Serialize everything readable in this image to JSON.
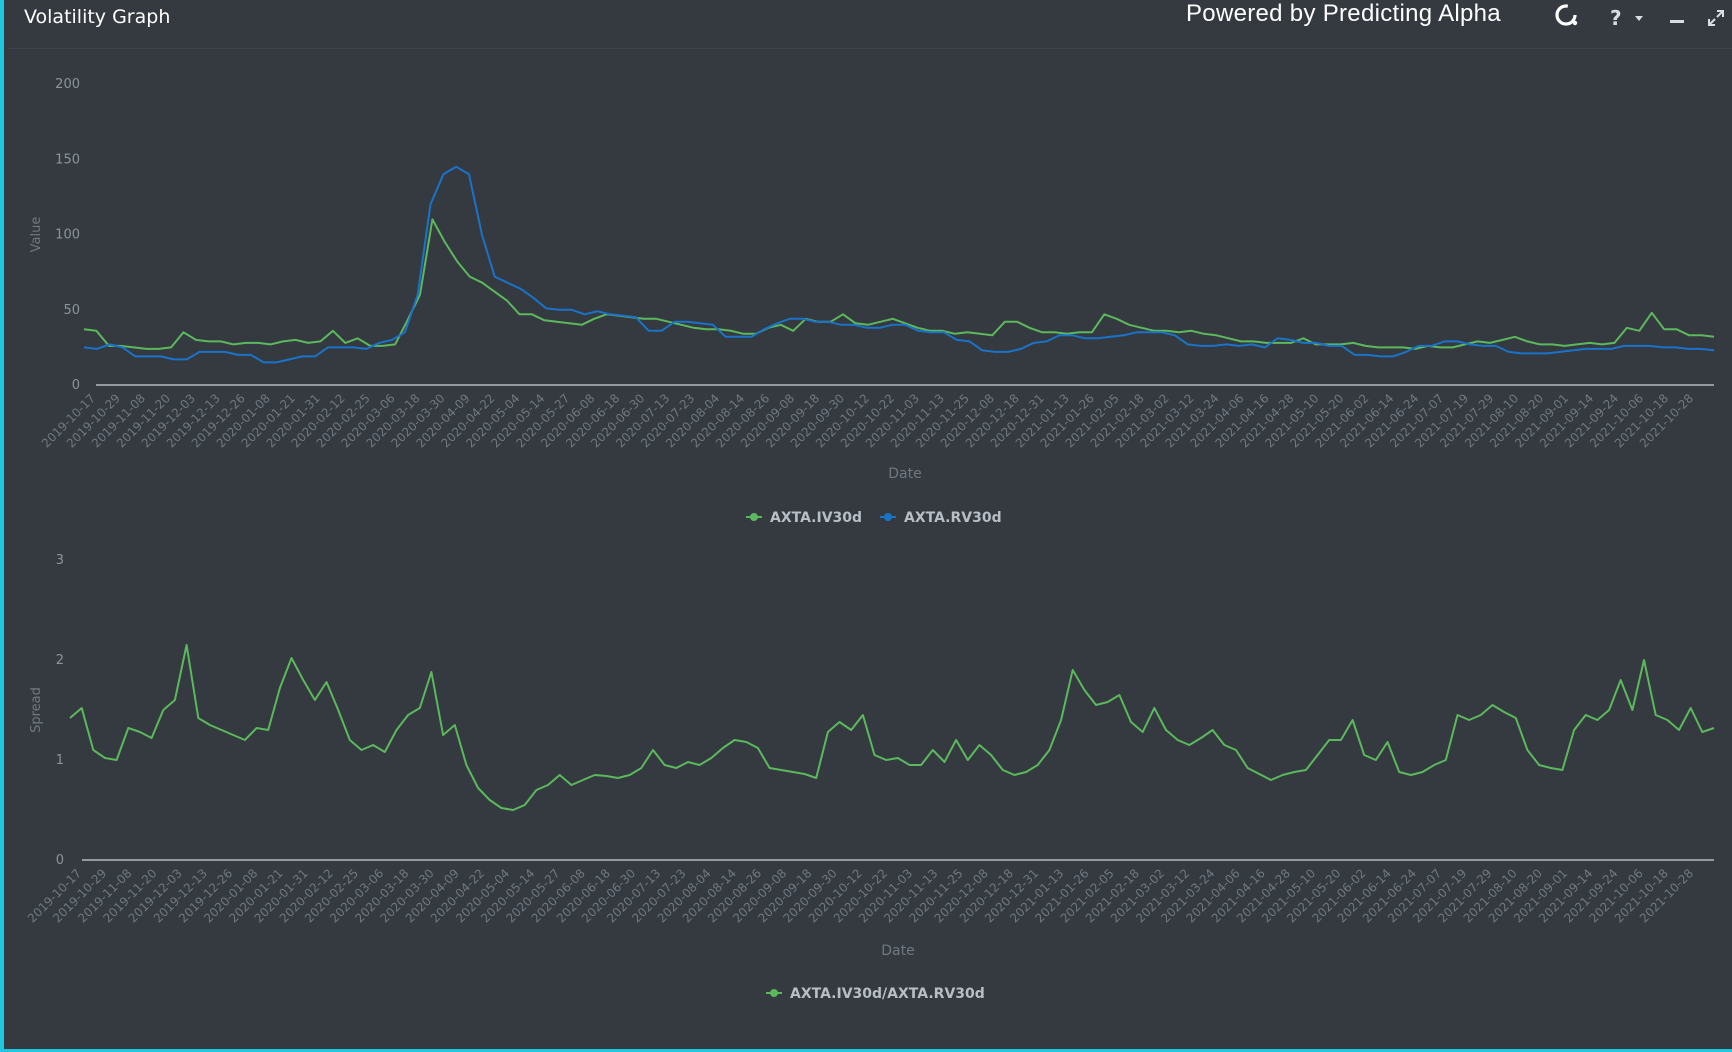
{
  "window": {
    "title": "Volatility Graph",
    "powered_by": "Powered by Predicting Alpha",
    "help_label": "?",
    "icons": [
      "help-icon",
      "minimize-icon",
      "expand-icon",
      "predicting-alpha-logo"
    ]
  },
  "colors": {
    "background": "#343a40",
    "iv_series": "#5cb85c",
    "rv_series": "#1a73c9",
    "spread_series": "#5cb85c",
    "accent_border": "#1ec8e0"
  },
  "chart_data": [
    {
      "type": "line",
      "xlabel": "Date",
      "ylabel": "Value",
      "ylim": [
        0,
        200
      ],
      "yticks": [
        0,
        50,
        100,
        150,
        200
      ],
      "grid": false,
      "legend_position": "bottom-center",
      "x_tick_labels": [
        "2019-10-17",
        "2019-10-29",
        "2019-11-08",
        "2019-11-20",
        "2019-12-03",
        "2019-12-13",
        "2019-12-26",
        "2020-01-08",
        "2020-01-21",
        "2020-01-31",
        "2020-02-12",
        "2020-02-25",
        "2020-03-06",
        "2020-03-18",
        "2020-03-30",
        "2020-04-09",
        "2020-04-22",
        "2020-05-04",
        "2020-05-14",
        "2020-05-27",
        "2020-06-08",
        "2020-06-18",
        "2020-06-30",
        "2020-07-13",
        "2020-07-23",
        "2020-08-04",
        "2020-08-14",
        "2020-08-26",
        "2020-09-08",
        "2020-09-18",
        "2020-09-30",
        "2020-10-12",
        "2020-10-22",
        "2020-11-03",
        "2020-11-13",
        "2020-11-25",
        "2020-12-08",
        "2020-12-18",
        "2020-12-31",
        "2021-01-13",
        "2021-01-26",
        "2021-02-05",
        "2021-02-18",
        "2021-03-02",
        "2021-03-12",
        "2021-03-24",
        "2021-04-06",
        "2021-04-16",
        "2021-04-28",
        "2021-05-10",
        "2021-05-20",
        "2021-06-02",
        "2021-06-14",
        "2021-06-24",
        "2021-07-07",
        "2021-07-19",
        "2021-07-29",
        "2021-08-10",
        "2021-08-20",
        "2021-09-01",
        "2021-09-14",
        "2021-09-24",
        "2021-10-06",
        "2021-10-18",
        "2021-10-28"
      ],
      "series": [
        {
          "name": "AXTA.IV30d",
          "color": "#5cb85c",
          "values": [
            37,
            36,
            26,
            26,
            25,
            24,
            24,
            25,
            35,
            30,
            29,
            29,
            27,
            28,
            28,
            27,
            29,
            30,
            28,
            29,
            36,
            28,
            31,
            26,
            26,
            27,
            43,
            60,
            110,
            95,
            82,
            72,
            68,
            62,
            56,
            47,
            47,
            43,
            42,
            41,
            40,
            44,
            47,
            46,
            45,
            44,
            44,
            42,
            40,
            38,
            37,
            37,
            36,
            34,
            34,
            38,
            40,
            36,
            44,
            42,
            42,
            47,
            41,
            40,
            42,
            44,
            41,
            38,
            36,
            36,
            34,
            35,
            34,
            33,
            42,
            42,
            38,
            35,
            35,
            34,
            35,
            35,
            47,
            44,
            40,
            38,
            36,
            36,
            35,
            36,
            34,
            33,
            31,
            29,
            29,
            28,
            28,
            28,
            31,
            27,
            27,
            27,
            28,
            26,
            25,
            25,
            25,
            24,
            26,
            25,
            25,
            27,
            29,
            28,
            30,
            32,
            29,
            27,
            27,
            26,
            27,
            28,
            27,
            28,
            38,
            36,
            48,
            37,
            37,
            33,
            33,
            32
          ]
        },
        {
          "name": "AXTA.RV30d",
          "color": "#1a73c9",
          "values": [
            25,
            24,
            27,
            25,
            19,
            19,
            19,
            17,
            17,
            22,
            22,
            22,
            20,
            20,
            15,
            15,
            17,
            19,
            19,
            25,
            25,
            25,
            24,
            28,
            30,
            35,
            60,
            120,
            140,
            145,
            140,
            100,
            72,
            68,
            64,
            58,
            51,
            50,
            50,
            47,
            49,
            47,
            46,
            45,
            36,
            36,
            42,
            42,
            41,
            40,
            32,
            32,
            32,
            37,
            41,
            44,
            44,
            42,
            42,
            40,
            40,
            38,
            38,
            40,
            40,
            36,
            35,
            35,
            30,
            29,
            23,
            22,
            22,
            24,
            28,
            29,
            33,
            33,
            31,
            31,
            32,
            33,
            35,
            35,
            35,
            33,
            27,
            26,
            26,
            27,
            26,
            27,
            25,
            31,
            30,
            28,
            28,
            26,
            26,
            20,
            20,
            19,
            19,
            22,
            26,
            26,
            29,
            29,
            27,
            26,
            26,
            22,
            21,
            21,
            21,
            22,
            23,
            24,
            24,
            24,
            26,
            26,
            26,
            25,
            25,
            24,
            24,
            23
          ]
        }
      ]
    },
    {
      "type": "line",
      "xlabel": "Date",
      "ylabel": "Spread",
      "ylim": [
        0,
        3
      ],
      "yticks": [
        0,
        1,
        2,
        3
      ],
      "grid": false,
      "legend_position": "bottom-center",
      "x_tick_labels": [
        "2019-10-17",
        "2019-10-29",
        "2019-11-08",
        "2019-11-20",
        "2019-12-03",
        "2019-12-13",
        "2019-12-26",
        "2020-01-08",
        "2020-01-21",
        "2020-01-31",
        "2020-02-12",
        "2020-02-25",
        "2020-03-06",
        "2020-03-18",
        "2020-03-30",
        "2020-04-09",
        "2020-04-22",
        "2020-05-04",
        "2020-05-14",
        "2020-05-27",
        "2020-06-08",
        "2020-06-18",
        "2020-06-30",
        "2020-07-13",
        "2020-07-23",
        "2020-08-04",
        "2020-08-14",
        "2020-08-26",
        "2020-09-08",
        "2020-09-18",
        "2020-09-30",
        "2020-10-12",
        "2020-10-22",
        "2020-11-03",
        "2020-11-13",
        "2020-11-25",
        "2020-12-08",
        "2020-12-18",
        "2020-12-31",
        "2021-01-13",
        "2021-01-26",
        "2021-02-05",
        "2021-02-18",
        "2021-03-02",
        "2021-03-12",
        "2021-03-24",
        "2021-04-06",
        "2021-04-16",
        "2021-04-28",
        "2021-05-10",
        "2021-05-20",
        "2021-06-02",
        "2021-06-14",
        "2021-06-24",
        "2021-07-07",
        "2021-07-19",
        "2021-07-29",
        "2021-08-10",
        "2021-08-20",
        "2021-09-01",
        "2021-09-14",
        "2021-09-24",
        "2021-10-06",
        "2021-10-18",
        "2021-10-28"
      ],
      "series": [
        {
          "name": "AXTA.IV30d/AXTA.RV30d",
          "color": "#5cb85c",
          "values": [
            1.42,
            1.52,
            1.1,
            1.02,
            1.0,
            1.32,
            1.28,
            1.22,
            1.5,
            1.6,
            2.15,
            1.42,
            1.35,
            1.3,
            1.25,
            1.2,
            1.32,
            1.3,
            1.72,
            2.02,
            1.8,
            1.6,
            1.78,
            1.5,
            1.2,
            1.1,
            1.15,
            1.08,
            1.3,
            1.45,
            1.52,
            1.88,
            1.25,
            1.35,
            0.95,
            0.72,
            0.6,
            0.52,
            0.5,
            0.55,
            0.7,
            0.75,
            0.85,
            0.75,
            0.8,
            0.85,
            0.84,
            0.82,
            0.85,
            0.92,
            1.1,
            0.95,
            0.92,
            0.98,
            0.95,
            1.02,
            1.12,
            1.2,
            1.18,
            1.12,
            0.92,
            0.9,
            0.88,
            0.86,
            0.82,
            1.28,
            1.38,
            1.3,
            1.45,
            1.05,
            1.0,
            1.02,
            0.95,
            0.95,
            1.1,
            0.98,
            1.2,
            1.0,
            1.15,
            1.05,
            0.9,
            0.85,
            0.88,
            0.95,
            1.1,
            1.4,
            1.9,
            1.7,
            1.55,
            1.58,
            1.65,
            1.38,
            1.28,
            1.52,
            1.3,
            1.2,
            1.15,
            1.22,
            1.3,
            1.15,
            1.1,
            0.92,
            0.86,
            0.8,
            0.85,
            0.88,
            0.9,
            1.05,
            1.2,
            1.2,
            1.4,
            1.05,
            1.0,
            1.18,
            0.88,
            0.85,
            0.88,
            0.95,
            1.0,
            1.45,
            1.4,
            1.45,
            1.55,
            1.48,
            1.42,
            1.1,
            0.95,
            0.92,
            0.9,
            1.3,
            1.45,
            1.4,
            1.5,
            1.8,
            1.5,
            2.0,
            1.45,
            1.4,
            1.3,
            1.52,
            1.28,
            1.32
          ]
        }
      ]
    }
  ]
}
